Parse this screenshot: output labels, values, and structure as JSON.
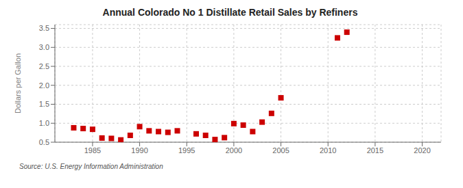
{
  "chart_data": {
    "type": "scatter",
    "title": "Annual Colorado No 1 Distillate Retail Sales by Refiners",
    "ylabel": "Dollars per Gallon",
    "annotation": "Source: U.S. Energy Information Administration",
    "x": [
      1983,
      1984,
      1985,
      1986,
      1987,
      1988,
      1989,
      1990,
      1991,
      1992,
      1993,
      1994,
      1996,
      1997,
      1998,
      1999,
      2000,
      2001,
      2002,
      2003,
      2004,
      2005,
      2011,
      2012
    ],
    "values": [
      0.88,
      0.86,
      0.84,
      0.61,
      0.6,
      0.56,
      0.68,
      0.91,
      0.8,
      0.78,
      0.76,
      0.8,
      0.72,
      0.68,
      0.57,
      0.62,
      0.99,
      0.95,
      0.78,
      1.03,
      1.26,
      1.67,
      3.25,
      3.4
    ],
    "color": "#cc0000",
    "marker": "square",
    "xlim": [
      1981,
      2022
    ],
    "xticks": [
      1985,
      1990,
      1995,
      2000,
      2005,
      2010,
      2015,
      2020
    ],
    "ylim": [
      0.5,
      3.6
    ],
    "yticks": [
      0.5,
      {
        "value": 1.0,
        "label": "1.0"
      },
      1.5,
      {
        "value": 2.0,
        "label": "2.0"
      },
      2.5,
      {
        "value": 3.0,
        "label": "3.0"
      },
      3.5
    ],
    "grid": true
  }
}
